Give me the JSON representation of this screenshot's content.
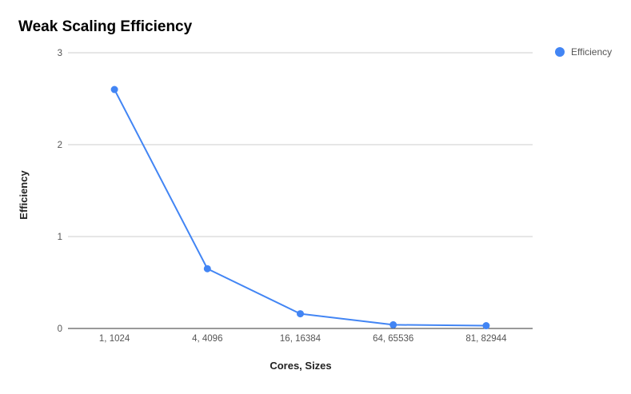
{
  "chart_data": {
    "type": "line",
    "title": "Weak Scaling Efficiency",
    "xlabel": "Cores, Sizes",
    "ylabel": "Efficiency",
    "categories": [
      "1, 1024",
      "4, 4096",
      "16, 16384",
      "64, 65536",
      "81, 82944"
    ],
    "series": [
      {
        "name": "Efficiency",
        "values": [
          2.6,
          0.65,
          0.16,
          0.04,
          0.03
        ],
        "color": "#4285f4"
      }
    ],
    "ylim": [
      0,
      3
    ],
    "yticks": [
      0,
      1,
      2,
      3
    ],
    "grid": true,
    "legend_position": "right"
  }
}
